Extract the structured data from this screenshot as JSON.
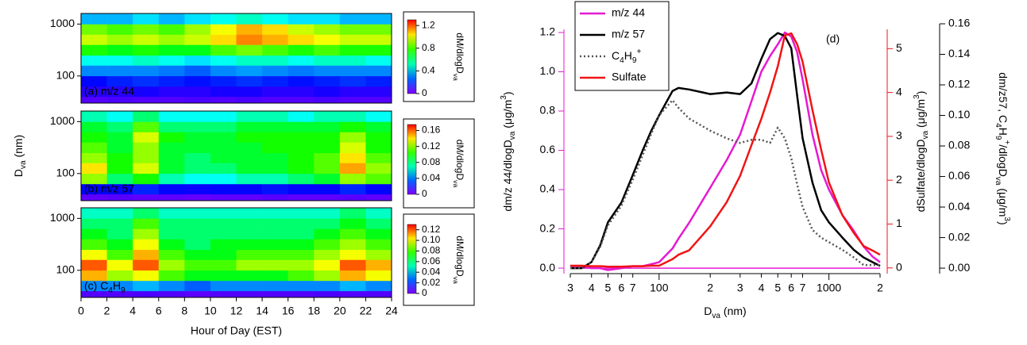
{
  "chart_data": [
    {
      "type": "heatmap",
      "label": "(a) m/z 44",
      "x": [
        0,
        2,
        4,
        6,
        8,
        10,
        12,
        14,
        16,
        18,
        20,
        22,
        24
      ],
      "y": [
        30,
        40,
        63,
        100,
        160,
        250,
        400,
        630,
        1000,
        1600
      ],
      "xlim": [
        0,
        24
      ],
      "ylim": [
        30,
        1600
      ],
      "yticks": [
        100,
        1000
      ],
      "log_y": true,
      "z": [
        [
          0.05,
          0.06,
          0.05,
          0.05,
          0.06,
          0.05,
          0.06,
          0.05,
          0.05,
          0.06,
          0.05,
          0.05
        ],
        [
          0.1,
          0.1,
          0.12,
          0.1,
          0.1,
          0.12,
          0.12,
          0.1,
          0.1,
          0.12,
          0.1,
          0.1
        ],
        [
          0.15,
          0.18,
          0.2,
          0.18,
          0.16,
          0.18,
          0.2,
          0.18,
          0.16,
          0.18,
          0.2,
          0.18
        ],
        [
          0.3,
          0.3,
          0.3,
          0.28,
          0.25,
          0.3,
          0.32,
          0.3,
          0.28,
          0.3,
          0.3,
          0.3
        ],
        [
          0.45,
          0.45,
          0.5,
          0.45,
          0.4,
          0.45,
          0.5,
          0.5,
          0.45,
          0.5,
          0.5,
          0.45
        ],
        [
          0.75,
          0.7,
          0.75,
          0.7,
          0.7,
          0.8,
          0.85,
          0.8,
          0.75,
          0.8,
          0.75,
          0.75
        ],
        [
          0.95,
          0.9,
          0.95,
          0.9,
          0.95,
          1.05,
          1.15,
          1.1,
          1.05,
          1.0,
          0.95,
          0.95
        ],
        [
          0.85,
          0.8,
          0.85,
          0.8,
          0.9,
          1.0,
          1.1,
          1.05,
          0.95,
          0.9,
          0.85,
          0.85
        ],
        [
          0.35,
          0.35,
          0.4,
          0.35,
          0.4,
          0.45,
          0.5,
          0.45,
          0.4,
          0.4,
          0.35,
          0.35
        ]
      ],
      "zlim": [
        0,
        1.3
      ],
      "zticks": [
        0,
        0.4,
        0.8,
        1.2
      ],
      "colorbar_label": [
        "dM/dlogD",
        "va"
      ]
    },
    {
      "type": "heatmap",
      "label": "(b) m/z 57",
      "x": [
        0,
        2,
        4,
        6,
        8,
        10,
        12,
        14,
        16,
        18,
        20,
        22,
        24
      ],
      "y": [
        30,
        40,
        63,
        100,
        160,
        250,
        400,
        630,
        1000,
        1600
      ],
      "xlim": [
        0,
        24
      ],
      "ylim": [
        30,
        1600
      ],
      "yticks": [
        100,
        1000
      ],
      "log_y": true,
      "ylabel": [
        "D",
        "va",
        " (nm)"
      ],
      "z": [
        [
          0.005,
          0.006,
          0.005,
          0.005,
          0.004,
          0.005,
          0.005,
          0.006,
          0.005,
          0.005,
          0.006,
          0.005
        ],
        [
          0.02,
          0.02,
          0.025,
          0.02,
          0.018,
          0.02,
          0.02,
          0.022,
          0.02,
          0.02,
          0.025,
          0.02
        ],
        [
          0.12,
          0.08,
          0.1,
          0.07,
          0.06,
          0.06,
          0.07,
          0.07,
          0.08,
          0.09,
          0.12,
          0.11
        ],
        [
          0.14,
          0.1,
          0.13,
          0.09,
          0.08,
          0.08,
          0.09,
          0.09,
          0.1,
          0.11,
          0.15,
          0.12
        ],
        [
          0.12,
          0.1,
          0.12,
          0.09,
          0.08,
          0.09,
          0.09,
          0.09,
          0.1,
          0.11,
          0.14,
          0.11
        ],
        [
          0.11,
          0.09,
          0.12,
          0.09,
          0.09,
          0.09,
          0.09,
          0.1,
          0.1,
          0.1,
          0.13,
          0.1
        ],
        [
          0.1,
          0.09,
          0.13,
          0.1,
          0.09,
          0.09,
          0.1,
          0.1,
          0.1,
          0.1,
          0.12,
          0.1
        ],
        [
          0.09,
          0.08,
          0.11,
          0.08,
          0.08,
          0.08,
          0.09,
          0.09,
          0.09,
          0.09,
          0.1,
          0.09
        ],
        [
          0.07,
          0.06,
          0.08,
          0.06,
          0.06,
          0.06,
          0.07,
          0.07,
          0.06,
          0.07,
          0.07,
          0.06
        ]
      ],
      "zlim": [
        0,
        0.175
      ],
      "zticks": [
        0,
        0.04,
        0.08,
        0.12,
        0.16
      ],
      "colorbar_label": [
        "dM/dlogD",
        "va"
      ]
    },
    {
      "type": "heatmap",
      "label": [
        "(c) C",
        "4",
        "H",
        "9"
      ],
      "x": [
        0,
        2,
        4,
        6,
        8,
        10,
        12,
        14,
        16,
        18,
        20,
        22,
        24
      ],
      "y": [
        30,
        40,
        63,
        100,
        160,
        250,
        400,
        630,
        1000,
        1600
      ],
      "xlim": [
        0,
        24
      ],
      "ylim": [
        30,
        1600
      ],
      "yticks": [
        100,
        1000
      ],
      "log_y": true,
      "xticks": [
        0,
        2,
        4,
        6,
        8,
        10,
        12,
        14,
        16,
        18,
        20,
        22,
        24
      ],
      "xlabel": "Hour of Day (EST)",
      "z": [
        [
          0.005,
          0.005,
          0.006,
          0.005,
          0.004,
          0.005,
          0.005,
          0.005,
          0.005,
          0.006,
          0.005,
          0.005
        ],
        [
          0.03,
          0.03,
          0.035,
          0.03,
          0.025,
          0.03,
          0.03,
          0.03,
          0.03,
          0.03,
          0.035,
          0.03
        ],
        [
          0.11,
          0.09,
          0.1,
          0.08,
          0.07,
          0.07,
          0.07,
          0.07,
          0.08,
          0.09,
          0.11,
          0.1
        ],
        [
          0.12,
          0.1,
          0.12,
          0.09,
          0.08,
          0.08,
          0.09,
          0.09,
          0.09,
          0.1,
          0.12,
          0.11
        ],
        [
          0.1,
          0.08,
          0.11,
          0.08,
          0.07,
          0.07,
          0.08,
          0.08,
          0.08,
          0.09,
          0.1,
          0.09
        ],
        [
          0.08,
          0.07,
          0.1,
          0.07,
          0.06,
          0.07,
          0.07,
          0.07,
          0.07,
          0.08,
          0.09,
          0.08
        ],
        [
          0.07,
          0.06,
          0.09,
          0.06,
          0.06,
          0.06,
          0.06,
          0.06,
          0.06,
          0.07,
          0.08,
          0.07
        ],
        [
          0.06,
          0.06,
          0.08,
          0.06,
          0.06,
          0.06,
          0.06,
          0.06,
          0.06,
          0.06,
          0.07,
          0.06
        ],
        [
          0.05,
          0.05,
          0.06,
          0.05,
          0.05,
          0.05,
          0.05,
          0.05,
          0.05,
          0.05,
          0.06,
          0.05
        ]
      ],
      "zlim": [
        0,
        0.13
      ],
      "zticks": [
        0,
        0.02,
        0.04,
        0.06,
        0.08,
        {
          "value": 0.1,
          "label": "0.10"
        },
        0.12
      ],
      "colorbar_label": [
        "dM/dlogD",
        "va"
      ]
    },
    {
      "type": "line",
      "annotation": "(d)",
      "legend": "upper left",
      "log_x": true,
      "x": [
        30,
        35,
        40,
        45,
        50,
        60,
        70,
        80,
        90,
        100,
        120,
        130,
        150,
        200,
        250,
        300,
        350,
        400,
        450,
        500,
        550,
        600,
        650,
        700,
        800,
        900,
        1000,
        1200,
        1400,
        1600,
        1800,
        2000
      ],
      "xlim": [
        30,
        2000
      ],
      "xticks": [
        {
          "value": 30,
          "label": "3"
        },
        {
          "value": 40,
          "label": "4"
        },
        {
          "value": 50,
          "label": "5"
        },
        {
          "value": 60,
          "label": "6"
        },
        {
          "value": 70,
          "label": "7"
        },
        100,
        {
          "value": 200,
          "label": "2"
        },
        {
          "value": 300,
          "label": "3"
        },
        {
          "value": 400,
          "label": "4"
        },
        {
          "value": 500,
          "label": "5"
        },
        {
          "value": 600,
          "label": "6"
        },
        {
          "value": 700,
          "label": "7"
        },
        1000,
        {
          "value": 2000,
          "label": "2"
        }
      ],
      "xlabel": [
        "D",
        "va",
        " (nm)"
      ],
      "ylim": [
        -0.028,
        1.216
      ],
      "yticks": [
        {
          "value": 0,
          "label": "0.0"
        },
        0.2,
        0.4,
        0.6,
        0.8,
        {
          "value": 1,
          "label": "1.0"
        },
        1.2
      ],
      "ylabel": [
        "dm/z 44/dlogD",
        "va",
        " (μg/m",
        "3",
        ")"
      ],
      "y2lim": [
        -0.13,
        5.44
      ],
      "y2ticks": [
        0,
        1,
        2,
        3,
        4,
        5
      ],
      "y2label": [
        "dSulfate/dlogD",
        "va",
        " (μg/m",
        "3",
        ")"
      ],
      "y3lim": [
        -0.0036,
        0.16
      ],
      "y3ticks": [
        {
          "value": 0,
          "label": "0.00"
        },
        0.02,
        0.04,
        0.06,
        0.08,
        {
          "value": 0.1,
          "label": "0.10"
        },
        0.12,
        0.14,
        0.16
      ],
      "y3label": [
        "dm/z57, C",
        "4",
        "H",
        "9",
        "+",
        "/dlogD",
        "va",
        " (μg/m",
        "3",
        ")"
      ],
      "series": [
        {
          "name": "m/z 44",
          "color": "#e619d2",
          "axis": "y",
          "values": [
            0.01,
            0.01,
            0.0,
            0.0,
            -0.01,
            0.0,
            0.01,
            0.01,
            0.02,
            0.03,
            0.1,
            0.15,
            0.23,
            0.41,
            0.55,
            0.68,
            0.85,
            1.0,
            1.08,
            1.14,
            1.2,
            1.18,
            1.1,
            0.96,
            0.68,
            0.5,
            0.4,
            0.27,
            0.19,
            0.11,
            0.06,
            0.03
          ]
        },
        {
          "name": "m/z 57",
          "color": "#000000",
          "axis": "y3",
          "values": [
            0.0,
            0.0,
            0.004,
            0.015,
            0.03,
            0.043,
            0.061,
            0.077,
            0.09,
            0.1,
            0.116,
            0.118,
            0.117,
            0.114,
            0.115,
            0.114,
            0.121,
            0.137,
            0.15,
            0.154,
            0.152,
            0.144,
            0.113,
            0.085,
            0.056,
            0.038,
            0.03,
            0.02,
            0.012,
            0.007,
            0.004,
            0.0015
          ]
        },
        {
          "name": [
            "C",
            "4",
            "H",
            "9",
            "+"
          ],
          "color": "#555555",
          "axis": "y3",
          "linestyle": "dotted",
          "values": [
            0.0,
            0.0,
            0.004,
            0.014,
            0.028,
            0.041,
            0.058,
            0.074,
            0.088,
            0.1,
            0.11,
            0.105,
            0.098,
            0.09,
            0.085,
            0.082,
            0.084,
            0.084,
            0.082,
            0.092,
            0.085,
            0.072,
            0.055,
            0.04,
            0.025,
            0.02,
            0.017,
            0.012,
            0.007,
            0.002,
            0.002,
            0.002
          ]
        },
        {
          "name": "Sulfate",
          "color": "#f01414",
          "axis": "y2",
          "values": [
            0.05,
            0.05,
            0.04,
            0.04,
            0.03,
            0.03,
            0.04,
            0.04,
            0.05,
            0.05,
            0.2,
            0.3,
            0.4,
            0.95,
            1.5,
            2.1,
            2.8,
            3.4,
            4.0,
            4.6,
            5.3,
            5.35,
            5.1,
            4.7,
            3.6,
            2.7,
            1.95,
            1.2,
            0.8,
            0.5,
            0.4,
            0.3
          ]
        }
      ]
    }
  ]
}
